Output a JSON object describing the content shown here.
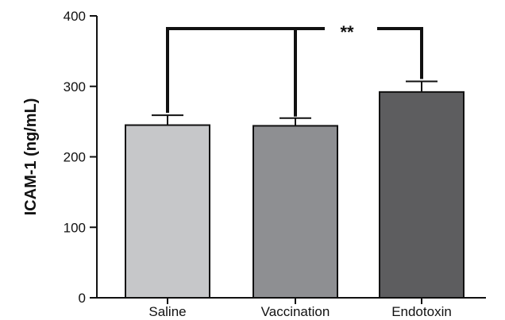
{
  "chart_data": {
    "type": "bar",
    "categories": [
      "Saline",
      "Vaccination",
      "Endotoxin"
    ],
    "values": [
      245,
      244,
      292
    ],
    "errors": [
      14,
      11,
      15
    ],
    "bar_colors": [
      "#c6c7c9",
      "#8e8f92",
      "#5d5d5f"
    ],
    "title": "",
    "xlabel": "",
    "ylabel": "ICAM-1 (ng/mL)",
    "ylim": [
      0,
      400
    ],
    "yticks": [
      0,
      100,
      200,
      300,
      400
    ],
    "grid": false,
    "significance": {
      "label": "**",
      "groups_left": [
        "Saline",
        "Vaccination"
      ],
      "group_right": "Endotoxin",
      "level": 382
    }
  }
}
